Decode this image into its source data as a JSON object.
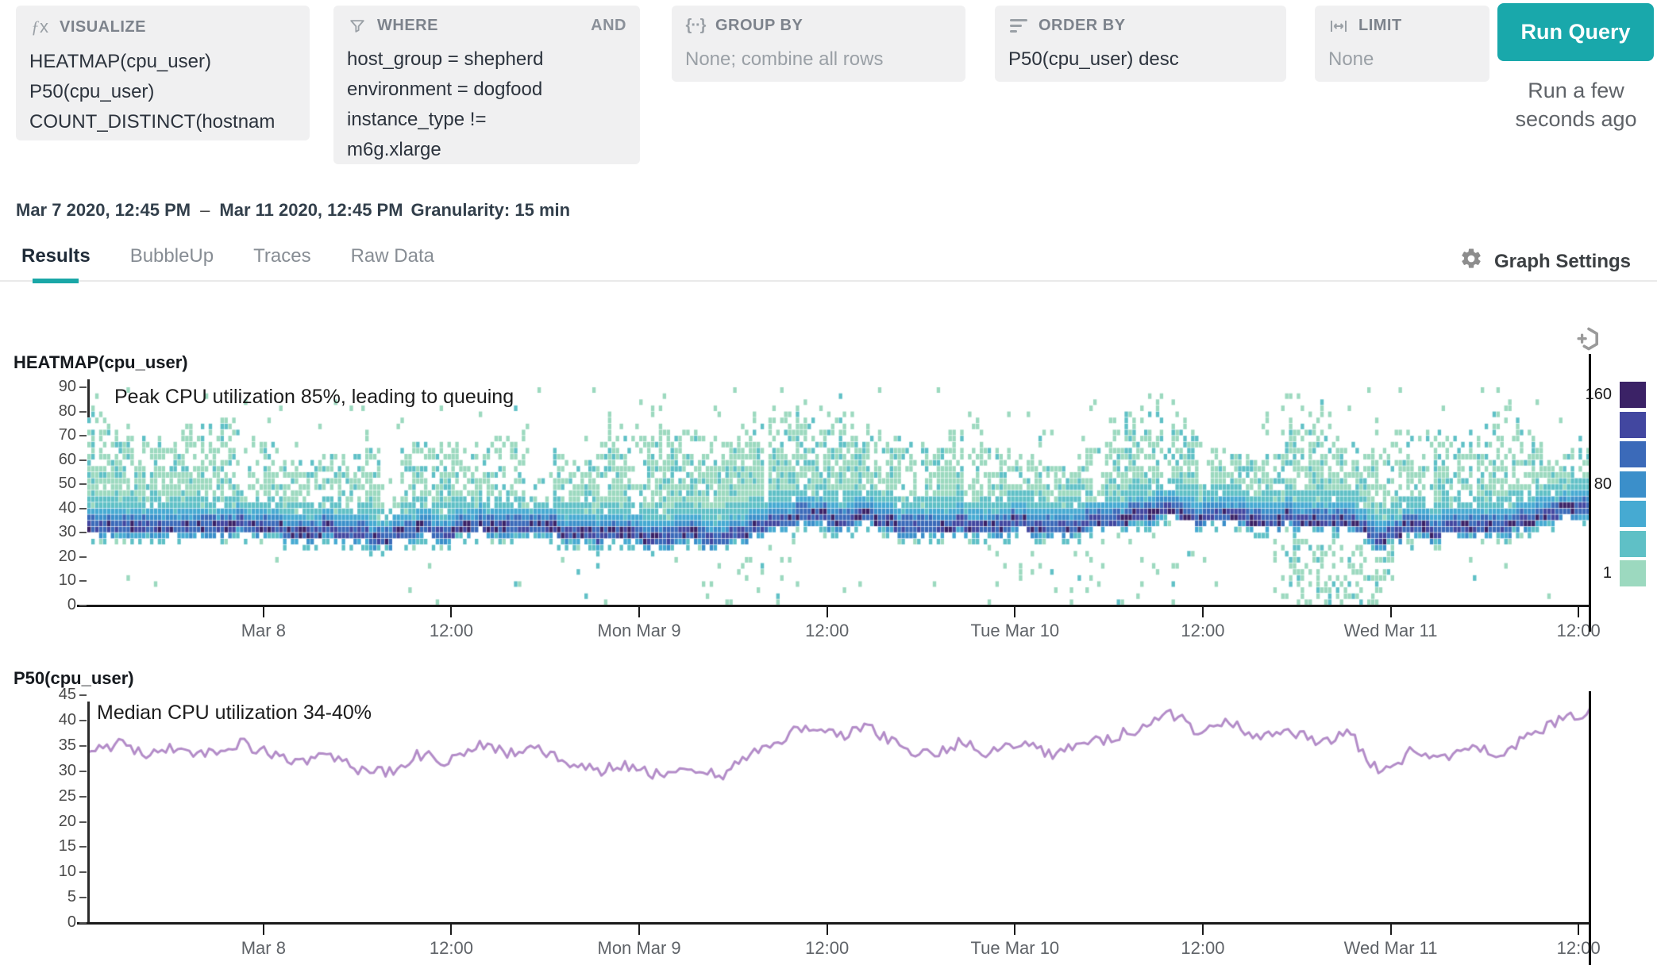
{
  "colors": {
    "accent_teal": "#19a8ab",
    "tab_underline": "#1aa7a7",
    "panel_bg": "#f0f0f1",
    "line_purple": "#b38cc8",
    "axis_dark": "#1a1a1a",
    "muted_text": "#9aa0a6"
  },
  "query_builder": {
    "panels": [
      {
        "label": "VISUALIZE",
        "icon": "function-icon",
        "rows": [
          {
            "text": "HEATMAP(cpu_user)"
          },
          {
            "text": "P50(cpu_user)"
          },
          {
            "text": "COUNT_DISTINCT(hostname)"
          }
        ]
      },
      {
        "label": "WHERE",
        "icon": "filter-icon",
        "conjunction": "AND",
        "rows": [
          {
            "text": "host_group = shepherd"
          },
          {
            "text": "environment = dogfood"
          },
          {
            "text": "instance_type != m6g.xlarge"
          }
        ]
      },
      {
        "label": "GROUP BY",
        "icon": "braces-icon",
        "rows": [
          {
            "text": "None; combine all rows",
            "muted": true
          }
        ]
      },
      {
        "label": "ORDER BY",
        "icon": "sort-lines-icon",
        "rows": [
          {
            "text": "P50(cpu_user) desc"
          }
        ]
      },
      {
        "label": "LIMIT",
        "icon": "width-icon",
        "rows": [
          {
            "text": "None",
            "muted": true
          }
        ]
      }
    ],
    "run_button": {
      "label": "Run Query"
    },
    "run_status": "Run a few seconds ago"
  },
  "time_header": {
    "start": "Mar 7 2020, 12:45 PM",
    "separator": "–",
    "end": "Mar 11 2020, 12:45 PM",
    "granularity": "Granularity: 15 min"
  },
  "tabs": {
    "items": [
      {
        "label": "Results",
        "active": true
      },
      {
        "label": "BubbleUp",
        "active": false
      },
      {
        "label": "Traces",
        "active": false
      },
      {
        "label": "Raw Data",
        "active": false
      }
    ],
    "graph_settings": "Graph Settings"
  },
  "chart_data": [
    {
      "type": "heatmap",
      "title": "HEATMAP(cpu_user)",
      "annotation": "Peak CPU utilization 85%, leading to queuing",
      "y_axis": {
        "min": 0,
        "max": 90,
        "tick_step": 10
      },
      "x_axis": {
        "total_hours": 96,
        "first_tick_offset_hours": 11.25,
        "tick_interval_hours": 12,
        "tick_labels": [
          "Mar 8",
          "12:00",
          "Mon Mar 9",
          "12:00",
          "Tue Mar 10",
          "12:00",
          "Wed Mar 11",
          "12:00"
        ]
      },
      "legend": {
        "labels": [
          "160",
          "80",
          "1"
        ],
        "label_swatch_index": [
          0,
          3,
          6
        ]
      },
      "palette_low_to_high": [
        "#9cd9bf",
        "#5fc0c6",
        "#46aad2",
        "#3b8fca",
        "#3b6ab9",
        "#4247a0",
        "#3b2266"
      ],
      "distribution": {
        "core_band_offset": -1.5,
        "core_band_halfwidth": 2.5,
        "upper_scatter_max": 90,
        "low_dot_zones": [
          [
            0.79,
            0.87,
            0.3
          ],
          [
            0.6,
            0.76,
            0.06
          ],
          [
            0.4,
            0.47,
            0.05
          ]
        ],
        "base_low_dot_p": 0.008,
        "seed": 20200307
      },
      "granularity_minutes": 15,
      "columns": 384
    },
    {
      "type": "line",
      "title": "P50(cpu_user)",
      "annotation": "Median CPU utilization 34-40%",
      "color": "#b38cc8",
      "y_axis": {
        "min": 0,
        "max": 45,
        "tick_step": 5
      },
      "x_axis": {
        "total_hours": 96,
        "first_tick_offset_hours": 11.25,
        "tick_interval_hours": 12,
        "tick_labels": [
          "Mar 8",
          "12:00",
          "Mon Mar 9",
          "12:00",
          "Tue Mar 10",
          "12:00",
          "Wed Mar 11",
          "12:00"
        ]
      },
      "points": 384,
      "noise_amplitude": 1.2,
      "seed": 424242,
      "anchors": {
        "t": [
          0,
          0.02,
          0.04,
          0.06,
          0.08,
          0.1,
          0.12,
          0.14,
          0.16,
          0.18,
          0.2,
          0.22,
          0.24,
          0.26,
          0.28,
          0.3,
          0.32,
          0.34,
          0.36,
          0.38,
          0.4,
          0.42,
          0.44,
          0.46,
          0.48,
          0.5,
          0.52,
          0.54,
          0.56,
          0.58,
          0.6,
          0.62,
          0.64,
          0.66,
          0.68,
          0.7,
          0.72,
          0.74,
          0.76,
          0.78,
          0.8,
          0.82,
          0.84,
          0.86,
          0.88,
          0.9,
          0.92,
          0.94,
          0.96,
          0.98,
          1.0
        ],
        "v": [
          34.5,
          35.3,
          33.6,
          34.8,
          33.2,
          35.6,
          33.8,
          31.2,
          33.2,
          30.6,
          29.6,
          33.2,
          32.0,
          35.4,
          33.4,
          34.8,
          31.6,
          30.2,
          31.2,
          29.2,
          31.4,
          28.8,
          33.0,
          36.2,
          39.2,
          37.0,
          38.4,
          34.8,
          33.2,
          35.6,
          33.6,
          36.0,
          33.2,
          35.0,
          36.4,
          38.4,
          41.8,
          37.4,
          39.8,
          36.6,
          38.0,
          35.4,
          37.4,
          29.2,
          33.8,
          32.4,
          35.0,
          33.6,
          37.0,
          40.4,
          41.8
        ]
      }
    }
  ]
}
